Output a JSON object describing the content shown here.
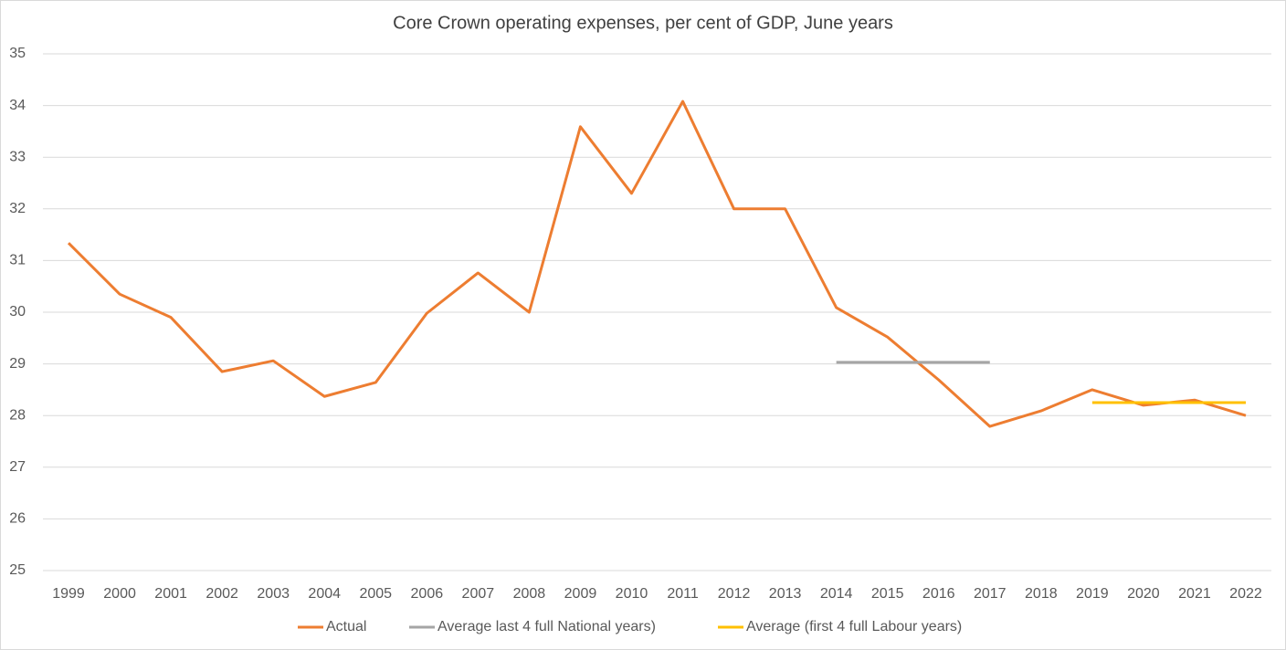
{
  "chart_data": {
    "type": "line",
    "title": "Core Crown operating expenses, per cent of GDP, June years",
    "categories": [
      "1999",
      "2000",
      "2001",
      "2002",
      "2003",
      "2004",
      "2005",
      "2006",
      "2007",
      "2008",
      "2009",
      "2010",
      "2011",
      "2012",
      "2013",
      "2014",
      "2015",
      "2016",
      "2017",
      "2018",
      "2019",
      "2020",
      "2021",
      "2022"
    ],
    "series": [
      {
        "name": "Actual",
        "color": "#ed7d31",
        "values": [
          31.34,
          30.35,
          29.9,
          28.85,
          29.06,
          28.37,
          28.64,
          29.98,
          30.76,
          30.0,
          33.59,
          32.3,
          34.08,
          32.0,
          32.0,
          30.09,
          29.52,
          28.69,
          27.79,
          28.09,
          28.5,
          28.2,
          28.3,
          28.0
        ]
      },
      {
        "name": "Average last 4 full National years)",
        "color": "#a5a5a5",
        "values": [
          null,
          null,
          null,
          null,
          null,
          null,
          null,
          null,
          null,
          null,
          null,
          null,
          null,
          null,
          null,
          29.03,
          29.03,
          29.03,
          29.03,
          null,
          null,
          null,
          null,
          null
        ]
      },
      {
        "name": "Average (first 4 full Labour years)",
        "color": "#ffc000",
        "values": [
          null,
          null,
          null,
          null,
          null,
          null,
          null,
          null,
          null,
          null,
          null,
          null,
          null,
          null,
          null,
          null,
          null,
          null,
          null,
          null,
          28.25,
          28.25,
          28.25,
          28.25
        ]
      }
    ],
    "ylim": [
      25,
      35
    ],
    "yticks": [
      25,
      26,
      27,
      28,
      29,
      30,
      31,
      32,
      33,
      34,
      35
    ],
    "grid": true,
    "legend": "bottom"
  }
}
